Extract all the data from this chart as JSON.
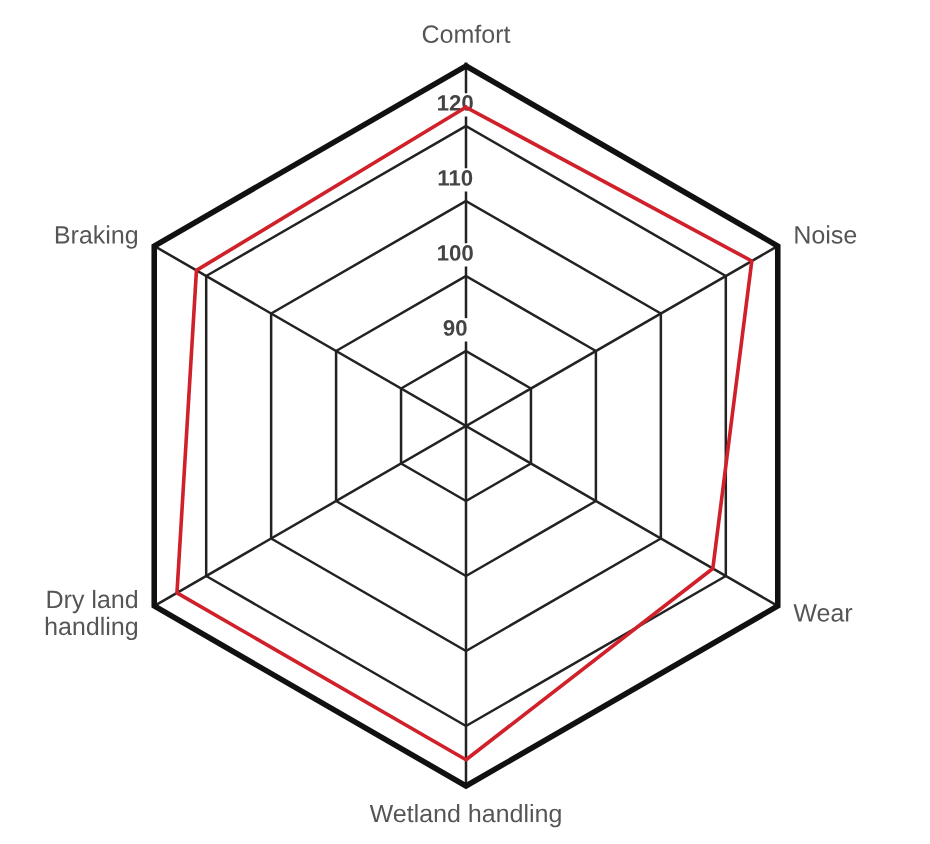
{
  "chart_data": {
    "type": "radar",
    "categories": [
      "Comfort",
      "Noise",
      "Wear",
      "Wetland handling",
      "Dry land\nhandling",
      "Braking"
    ],
    "series": [
      {
        "color": "#d0202a",
        "values": [
          122.5,
          124,
          118,
          124.5,
          124.5,
          121.5
        ]
      }
    ],
    "ylim": [
      80,
      128
    ],
    "yticks": [
      90,
      100,
      110,
      120
    ],
    "grid": true,
    "marker": "none",
    "line_style": "solid"
  }
}
